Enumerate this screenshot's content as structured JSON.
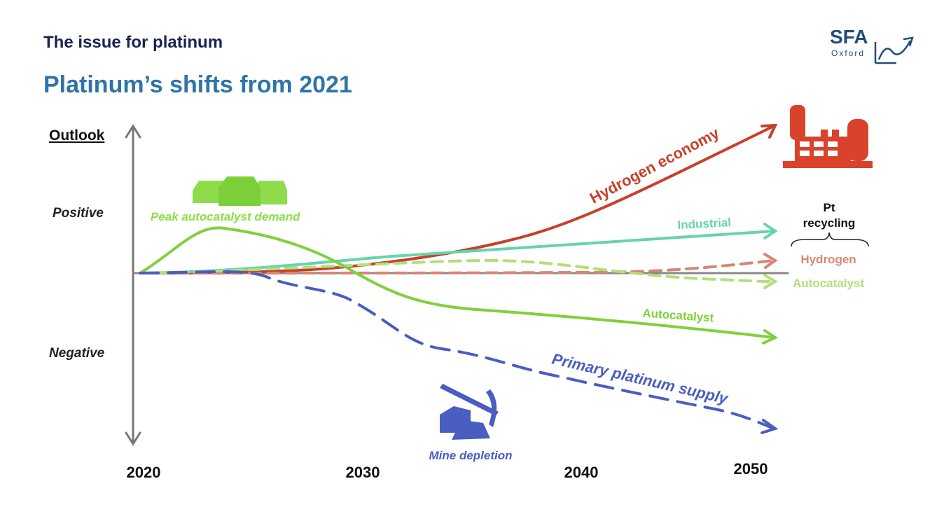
{
  "header": {
    "title": "The issue for platinum",
    "subtitle": "Platinum’s shifts from 2021"
  },
  "logo": {
    "name": "SFA",
    "sub": "Oxford"
  },
  "axis": {
    "label": "Outlook",
    "positive": "Positive",
    "negative": "Negative",
    "years": [
      2020,
      2030,
      2040,
      2050
    ]
  },
  "lines": {
    "hydrogen_economy": "Hydrogen economy",
    "industrial": "Industrial",
    "autocatalyst": "Autocatalyst",
    "primary_supply": "Primary platinum supply"
  },
  "annotations": {
    "peak": "Peak autocatalyst demand",
    "mine": "Mine depletion"
  },
  "recycling": {
    "title_1": "Pt",
    "title_2": "recycling",
    "hydrogen": "Hydrogen",
    "autocatalyst": "Autocatalyst"
  }
}
